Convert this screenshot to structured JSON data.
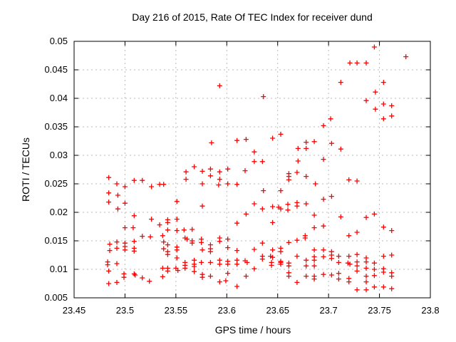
{
  "chart_data": {
    "type": "scatter",
    "title": "Day 216 of 2015, Rate Of TEC Index for receiver dund",
    "xlabel": "GPS time / hours",
    "ylabel": "ROTI / TECUs",
    "xlim": [
      23.45,
      23.8
    ],
    "ylim": [
      0.005,
      0.05
    ],
    "xticks": [
      "23.45",
      "23.5",
      "23.55",
      "23.6",
      "23.65",
      "23.7",
      "23.75",
      "23.8"
    ],
    "yticks": [
      "0.005",
      "0.01",
      "0.015",
      "0.02",
      "0.025",
      "0.03",
      "0.035",
      "0.04",
      "0.045",
      "0.05"
    ],
    "grid": "dashed",
    "legend": "none",
    "marker": "plus",
    "marker_color": "#ff0000",
    "grid_color": "#bbbbbb",
    "axis_color": "#000000",
    "background_color": "#ffffff",
    "series_name": "ROTI",
    "points": [
      [
        23.593,
        0.0422
      ],
      [
        23.636,
        0.0403
      ],
      [
        23.585,
        0.0322
      ],
      [
        23.61,
        0.0326
      ],
      [
        23.619,
        0.0328
      ],
      [
        23.645,
        0.033
      ],
      [
        23.653,
        0.0337
      ],
      [
        23.67,
        0.0312
      ],
      [
        23.678,
        0.0323
      ],
      [
        23.678,
        0.0312
      ],
      [
        23.686,
        0.0324
      ],
      [
        23.627,
        0.0306
      ],
      [
        23.627,
        0.0289
      ],
      [
        23.635,
        0.0289
      ],
      [
        23.67,
        0.029
      ],
      [
        23.745,
        0.049
      ],
      [
        23.776,
        0.0473
      ],
      [
        23.721,
        0.0462
      ],
      [
        23.728,
        0.0462
      ],
      [
        23.737,
        0.0462
      ],
      [
        23.712,
        0.0428
      ],
      [
        23.754,
        0.0428
      ],
      [
        23.746,
        0.0411
      ],
      [
        23.737,
        0.0396
      ],
      [
        23.754,
        0.039
      ],
      [
        23.762,
        0.0387
      ],
      [
        23.746,
        0.0381
      ],
      [
        23.754,
        0.0364
      ],
      [
        23.762,
        0.0369
      ],
      [
        23.702,
        0.0364
      ],
      [
        23.695,
        0.0352
      ],
      [
        23.703,
        0.0321
      ],
      [
        23.712,
        0.0311
      ],
      [
        23.695,
        0.0293
      ],
      [
        23.484,
        0.0261
      ],
      [
        23.492,
        0.025
      ],
      [
        23.5,
        0.0245
      ],
      [
        23.509,
        0.0256
      ],
      [
        23.517,
        0.0256
      ],
      [
        23.526,
        0.0245
      ],
      [
        23.534,
        0.0249
      ],
      [
        23.538,
        0.0249
      ],
      [
        23.484,
        0.0234
      ],
      [
        23.493,
        0.023
      ],
      [
        23.484,
        0.0218
      ],
      [
        23.5,
        0.0216
      ],
      [
        23.493,
        0.0206
      ],
      [
        23.509,
        0.0194
      ],
      [
        23.526,
        0.0188
      ],
      [
        23.534,
        0.0178
      ],
      [
        23.5,
        0.0173
      ],
      [
        23.508,
        0.0173
      ],
      [
        23.517,
        0.0158
      ],
      [
        23.525,
        0.0157
      ],
      [
        23.537,
        0.0159
      ],
      [
        23.538,
        0.0148
      ],
      [
        23.538,
        0.0136
      ],
      [
        23.485,
        0.0144
      ],
      [
        23.485,
        0.0133
      ],
      [
        23.492,
        0.0148
      ],
      [
        23.492,
        0.0137
      ],
      [
        23.5,
        0.0146
      ],
      [
        23.5,
        0.014
      ],
      [
        23.5,
        0.0134
      ],
      [
        23.509,
        0.0149
      ],
      [
        23.509,
        0.0137
      ],
      [
        23.509,
        0.0132
      ],
      [
        23.483,
        0.0113
      ],
      [
        23.483,
        0.0108
      ],
      [
        23.492,
        0.011
      ],
      [
        23.484,
        0.0097
      ],
      [
        23.499,
        0.0092
      ],
      [
        23.499,
        0.0086
      ],
      [
        23.509,
        0.0092
      ],
      [
        23.51,
        0.009
      ],
      [
        23.517,
        0.0085
      ],
      [
        23.524,
        0.0079
      ],
      [
        23.484,
        0.0075
      ],
      [
        23.492,
        0.0077
      ],
      [
        23.537,
        0.0087
      ],
      [
        23.537,
        0.0102
      ],
      [
        23.568,
        0.028
      ],
      [
        23.56,
        0.0271
      ],
      [
        23.576,
        0.0272
      ],
      [
        23.584,
        0.0276
      ],
      [
        23.593,
        0.0271
      ],
      [
        23.601,
        0.0276
      ],
      [
        23.618,
        0.0273
      ],
      [
        23.56,
        0.0258
      ],
      [
        23.584,
        0.0264
      ],
      [
        23.593,
        0.0258
      ],
      [
        23.576,
        0.025
      ],
      [
        23.592,
        0.0248
      ],
      [
        23.601,
        0.025
      ],
      [
        23.61,
        0.0249
      ],
      [
        23.551,
        0.0219
      ],
      [
        23.576,
        0.0211
      ],
      [
        23.619,
        0.0197
      ],
      [
        23.61,
        0.0181
      ],
      [
        23.542,
        0.0187
      ],
      [
        23.542,
        0.0182
      ],
      [
        23.551,
        0.0188
      ],
      [
        23.542,
        0.0169
      ],
      [
        23.551,
        0.0168
      ],
      [
        23.558,
        0.0169
      ],
      [
        23.566,
        0.017
      ],
      [
        23.559,
        0.0155
      ],
      [
        23.561,
        0.0153
      ],
      [
        23.566,
        0.015
      ],
      [
        23.566,
        0.0146
      ],
      [
        23.575,
        0.0153
      ],
      [
        23.575,
        0.0147
      ],
      [
        23.593,
        0.0155
      ],
      [
        23.593,
        0.0149
      ],
      [
        23.601,
        0.0153
      ],
      [
        23.542,
        0.0143
      ],
      [
        23.551,
        0.0139
      ],
      [
        23.551,
        0.0134
      ],
      [
        23.584,
        0.0143
      ],
      [
        23.584,
        0.0136
      ],
      [
        23.584,
        0.0131
      ],
      [
        23.576,
        0.0134
      ],
      [
        23.601,
        0.0138
      ],
      [
        23.61,
        0.0133
      ],
      [
        23.542,
        0.0131
      ],
      [
        23.542,
        0.0126
      ],
      [
        23.551,
        0.012
      ],
      [
        23.559,
        0.0112
      ],
      [
        23.559,
        0.0107
      ],
      [
        23.568,
        0.0116
      ],
      [
        23.568,
        0.0109
      ],
      [
        23.575,
        0.0112
      ],
      [
        23.584,
        0.0112
      ],
      [
        23.593,
        0.0116
      ],
      [
        23.593,
        0.0109
      ],
      [
        23.601,
        0.0114
      ],
      [
        23.601,
        0.0109
      ],
      [
        23.61,
        0.0116
      ],
      [
        23.61,
        0.0109
      ],
      [
        23.618,
        0.0115
      ],
      [
        23.62,
        0.0112
      ],
      [
        23.542,
        0.0102
      ],
      [
        23.542,
        0.0097
      ],
      [
        23.55,
        0.0102
      ],
      [
        23.552,
        0.0098
      ],
      [
        23.559,
        0.0102
      ],
      [
        23.568,
        0.0105
      ],
      [
        23.568,
        0.0096
      ],
      [
        23.576,
        0.0091
      ],
      [
        23.576,
        0.0086
      ],
      [
        23.584,
        0.0088
      ],
      [
        23.593,
        0.0078
      ],
      [
        23.599,
        0.008
      ],
      [
        23.61,
        0.007
      ],
      [
        23.619,
        0.0088
      ],
      [
        23.601,
        0.0093
      ],
      [
        23.661,
        0.0268
      ],
      [
        23.669,
        0.027
      ],
      [
        23.661,
        0.0263
      ],
      [
        23.661,
        0.0257
      ],
      [
        23.678,
        0.0263
      ],
      [
        23.687,
        0.025
      ],
      [
        23.636,
        0.0238
      ],
      [
        23.653,
        0.0238
      ],
      [
        23.703,
        0.0228
      ],
      [
        23.695,
        0.0223
      ],
      [
        23.627,
        0.0215
      ],
      [
        23.635,
        0.0206
      ],
      [
        23.645,
        0.021
      ],
      [
        23.651,
        0.0209
      ],
      [
        23.653,
        0.0206
      ],
      [
        23.66,
        0.0214
      ],
      [
        23.66,
        0.0204
      ],
      [
        23.669,
        0.0217
      ],
      [
        23.669,
        0.0211
      ],
      [
        23.678,
        0.0215
      ],
      [
        23.686,
        0.0195
      ],
      [
        23.712,
        0.0192
      ],
      [
        23.645,
        0.0182
      ],
      [
        23.686,
        0.0173
      ],
      [
        23.695,
        0.0176
      ],
      [
        23.677,
        0.0159
      ],
      [
        23.677,
        0.0155
      ],
      [
        23.669,
        0.0151
      ],
      [
        23.661,
        0.0147
      ],
      [
        23.635,
        0.0146
      ],
      [
        23.627,
        0.0135
      ],
      [
        23.645,
        0.0134
      ],
      [
        23.653,
        0.0137
      ],
      [
        23.653,
        0.0131
      ],
      [
        23.635,
        0.0123
      ],
      [
        23.635,
        0.0118
      ],
      [
        23.643,
        0.0123
      ],
      [
        23.645,
        0.0121
      ],
      [
        23.644,
        0.0112
      ],
      [
        23.644,
        0.0107
      ],
      [
        23.653,
        0.0114
      ],
      [
        23.653,
        0.0112
      ],
      [
        23.653,
        0.0109
      ],
      [
        23.661,
        0.0111
      ],
      [
        23.661,
        0.0106
      ],
      [
        23.669,
        0.0123
      ],
      [
        23.678,
        0.0116
      ],
      [
        23.678,
        0.0106
      ],
      [
        23.686,
        0.0134
      ],
      [
        23.686,
        0.0122
      ],
      [
        23.686,
        0.0116
      ],
      [
        23.686,
        0.0106
      ],
      [
        23.695,
        0.0134
      ],
      [
        23.695,
        0.0122
      ],
      [
        23.703,
        0.0131
      ],
      [
        23.703,
        0.0125
      ],
      [
        23.703,
        0.0119
      ],
      [
        23.627,
        0.0101
      ],
      [
        23.661,
        0.0094
      ],
      [
        23.661,
        0.0088
      ],
      [
        23.669,
        0.0077
      ],
      [
        23.678,
        0.0088
      ],
      [
        23.686,
        0.0088
      ],
      [
        23.686,
        0.0083
      ],
      [
        23.695,
        0.0091
      ],
      [
        23.703,
        0.009
      ],
      [
        23.72,
        0.0257
      ],
      [
        23.728,
        0.0255
      ],
      [
        23.737,
        0.0191
      ],
      [
        23.745,
        0.0197
      ],
      [
        23.754,
        0.0174
      ],
      [
        23.762,
        0.0168
      ],
      [
        23.728,
        0.0165
      ],
      [
        23.72,
        0.0159
      ],
      [
        23.72,
        0.0123
      ],
      [
        23.728,
        0.0126
      ],
      [
        23.71,
        0.0123
      ],
      [
        23.71,
        0.0112
      ],
      [
        23.71,
        0.0093
      ],
      [
        23.71,
        0.0083
      ],
      [
        23.737,
        0.012
      ],
      [
        23.737,
        0.0113
      ],
      [
        23.745,
        0.0111
      ],
      [
        23.754,
        0.0123
      ],
      [
        23.762,
        0.0125
      ],
      [
        23.719,
        0.0111
      ],
      [
        23.721,
        0.0109
      ],
      [
        23.728,
        0.0113
      ],
      [
        23.728,
        0.0106
      ],
      [
        23.728,
        0.0097
      ],
      [
        23.737,
        0.0102
      ],
      [
        23.737,
        0.0088
      ],
      [
        23.745,
        0.01
      ],
      [
        23.745,
        0.0089
      ],
      [
        23.754,
        0.0101
      ],
      [
        23.754,
        0.0095
      ],
      [
        23.762,
        0.0094
      ],
      [
        23.762,
        0.0088
      ],
      [
        23.72,
        0.0084
      ],
      [
        23.72,
        0.0078
      ],
      [
        23.737,
        0.0078
      ],
      [
        23.745,
        0.0069
      ],
      [
        23.754,
        0.0069
      ],
      [
        23.762,
        0.0066
      ],
      [
        23.728,
        0.0064
      ],
      [
        23.737,
        0.0064
      ]
    ]
  }
}
